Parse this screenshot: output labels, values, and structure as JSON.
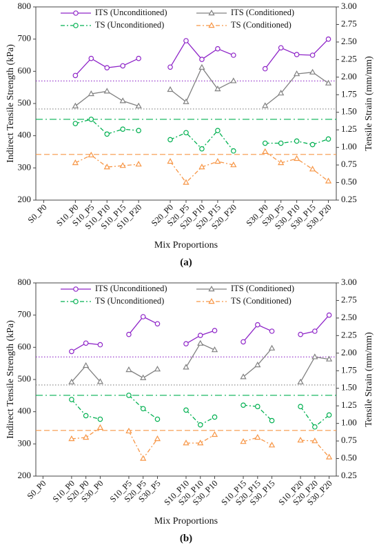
{
  "chart_data": [
    {
      "type": "line",
      "caption": "(a)",
      "xlabel": "Mix Proportions",
      "ylabel": "Indirect Tensile Strength (kPa)",
      "y2label": "Tensile Strain (mm/mm)",
      "categories": [
        "S0_P0",
        null,
        "S10_P0",
        "S10_P5",
        "S10_P10",
        "S10_P15",
        "S10_P20",
        null,
        "S20_P0",
        "S20_P5",
        "S20_P10",
        "S20_P15",
        "S20_P20",
        null,
        "S30_P0",
        "S30_P5",
        "S30_P10",
        "S30_P15",
        "S30_P20"
      ],
      "ylim": [
        200,
        800
      ],
      "yticks": [
        200,
        300,
        400,
        500,
        600,
        700,
        800
      ],
      "y2lim": [
        0.25,
        3
      ],
      "y2ticks": [
        0.25,
        {
          "value": 0.5,
          "label": "0.50"
        },
        0.75,
        {
          "value": 1,
          "label": "1.00"
        },
        1.25,
        {
          "value": 1.5,
          "label": "1.50"
        },
        1.75,
        {
          "value": 2,
          "label": "2.00"
        },
        2.25,
        {
          "value": 2.5,
          "label": "2.50"
        },
        2.75,
        {
          "value": 3,
          "label": "3.00"
        }
      ],
      "series": [
        {
          "name": "ITS (Unconditioned)",
          "color": "#8e24c8",
          "marker": "circle",
          "dash": "none",
          "ref_dash": "1.5 2.5",
          "reference": 570,
          "values": [
            null,
            null,
            587,
            640,
            611,
            617,
            640,
            null,
            613,
            695,
            637,
            670,
            650,
            null,
            608,
            673,
            652,
            650,
            700
          ]
        },
        {
          "name": "ITS (Conditioned)",
          "color": "#808080",
          "marker": "triangle",
          "dash": "none",
          "ref_dash": "1.5 2.5",
          "reference": 483,
          "values": [
            null,
            null,
            492,
            530,
            538,
            508,
            492,
            null,
            543,
            505,
            612,
            545,
            570,
            null,
            493,
            532,
            592,
            597,
            563
          ]
        },
        {
          "name": "TS (Unconditioned)",
          "color": "#00b050",
          "marker": "circle",
          "dash": "6 3 2 3",
          "ref_dash": "10 4 2 4",
          "reference": 1.4,
          "axis": "y2",
          "values": [
            null,
            null,
            1.34,
            1.4,
            1.19,
            1.26,
            1.24,
            null,
            1.11,
            1.21,
            0.98,
            1.24,
            0.95,
            null,
            1.06,
            1.06,
            1.09,
            1.04,
            1.12
          ]
        },
        {
          "name": "TS (Conditioned)",
          "color": "#f79646",
          "marker": "triangle",
          "dash": "6 3 2 3",
          "ref_dash": "8 4",
          "reference": 0.9,
          "axis": "y2",
          "values": [
            null,
            null,
            0.78,
            0.89,
            0.72,
            0.74,
            0.76,
            null,
            0.8,
            0.5,
            0.72,
            0.8,
            0.75,
            null,
            0.94,
            0.78,
            0.84,
            0.69,
            0.52
          ]
        }
      ]
    },
    {
      "type": "line",
      "caption": "(b)",
      "xlabel": "Mix Proportions",
      "ylabel": "Indirect Tensile Strength (kPa)",
      "y2label": "Tensile Strain (mm/mm)",
      "categories": [
        "S0_P0",
        null,
        "S10_P0",
        "S20_P0",
        "S30_P0",
        null,
        "S10_P5",
        "S20_P5",
        "S30_P5",
        null,
        "S10_P10",
        "S20_P10",
        "S30_P10",
        null,
        "S10_P15",
        "S20_P15",
        "S30_P15",
        null,
        "S10_P20",
        "S20_P20",
        "S30_P20"
      ],
      "ylim": [
        200,
        800
      ],
      "yticks": [
        200,
        300,
        400,
        500,
        600,
        700,
        800
      ],
      "y2lim": [
        0.25,
        3
      ],
      "y2ticks": [
        0.25,
        {
          "value": 0.5,
          "label": "0.50"
        },
        0.75,
        {
          "value": 1,
          "label": "1.00"
        },
        1.25,
        {
          "value": 1.5,
          "label": "1.50"
        },
        1.75,
        {
          "value": 2,
          "label": "2.00"
        },
        2.25,
        {
          "value": 2.5,
          "label": "2.50"
        },
        2.75,
        {
          "value": 3,
          "label": "3.00"
        }
      ],
      "series": [
        {
          "name": "ITS (Unconditioned)",
          "color": "#8e24c8",
          "marker": "circle",
          "dash": "none",
          "ref_dash": "1.5 2.5",
          "reference": 570,
          "values": [
            null,
            null,
            587,
            613,
            608,
            null,
            640,
            695,
            673,
            null,
            611,
            637,
            652,
            null,
            617,
            670,
            650,
            null,
            640,
            650,
            700
          ]
        },
        {
          "name": "ITS (Conditioned)",
          "color": "#808080",
          "marker": "triangle",
          "dash": "none",
          "ref_dash": "1.5 2.5",
          "reference": 483,
          "values": [
            null,
            null,
            492,
            543,
            493,
            null,
            530,
            505,
            532,
            null,
            538,
            612,
            592,
            null,
            508,
            545,
            597,
            null,
            492,
            570,
            563
          ]
        },
        {
          "name": "TS (Unconditioned)",
          "color": "#00b050",
          "marker": "circle",
          "dash": "6 3 2 3",
          "ref_dash": "10 4 2 4",
          "reference": 1.4,
          "axis": "y2",
          "values": [
            null,
            null,
            1.34,
            1.11,
            1.06,
            null,
            1.4,
            1.21,
            1.06,
            null,
            1.19,
            0.98,
            1.09,
            null,
            1.26,
            1.24,
            1.04,
            null,
            1.24,
            0.95,
            1.12
          ]
        },
        {
          "name": "TS (Conditioned)",
          "color": "#f79646",
          "marker": "triangle",
          "dash": "6 3 2 3",
          "ref_dash": "8 4",
          "reference": 0.9,
          "axis": "y2",
          "values": [
            null,
            null,
            0.78,
            0.8,
            0.94,
            null,
            0.89,
            0.5,
            0.78,
            null,
            0.72,
            0.72,
            0.84,
            null,
            0.74,
            0.8,
            0.69,
            null,
            0.76,
            0.75,
            0.52
          ]
        }
      ]
    }
  ]
}
